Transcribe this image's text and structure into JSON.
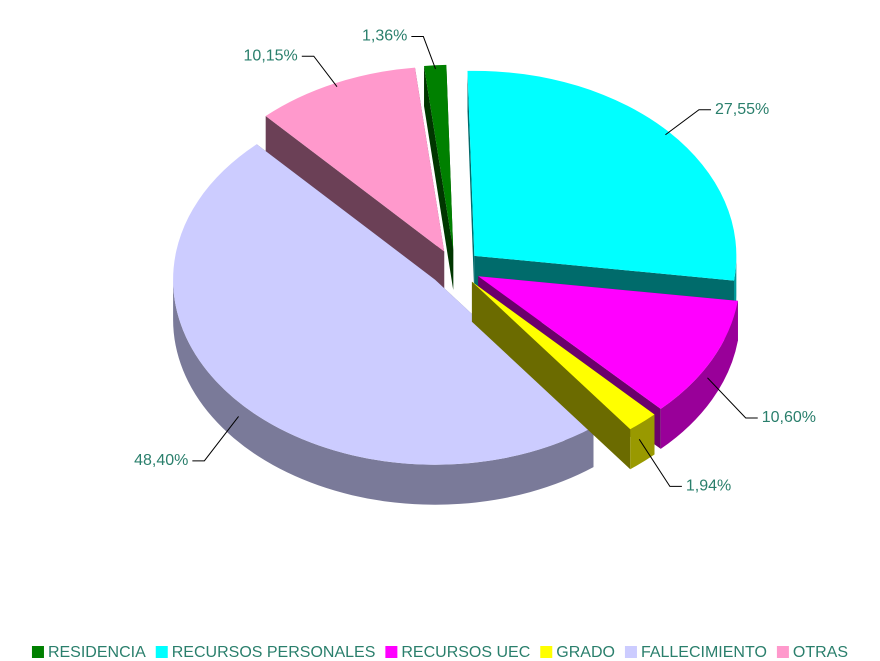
{
  "chart_data": {
    "type": "pie3d",
    "categories": [
      "RESIDENCIA",
      "RECURSOS PERSONALES",
      "RECURSOS UEC",
      "GRADO",
      "FALLECIMIENTO",
      "OTRAS"
    ],
    "values": [
      1.36,
      27.55,
      10.6,
      1.94,
      48.4,
      10.15
    ],
    "value_labels": [
      "1,36%",
      "27,55%",
      "10,60%",
      "1,94%",
      "48,40%",
      "10,15%"
    ],
    "colors": [
      "#008000",
      "#00ffff",
      "#ff00ff",
      "#ffff00",
      "#ccccff",
      "#ff99cc"
    ],
    "legend": "bottom"
  }
}
